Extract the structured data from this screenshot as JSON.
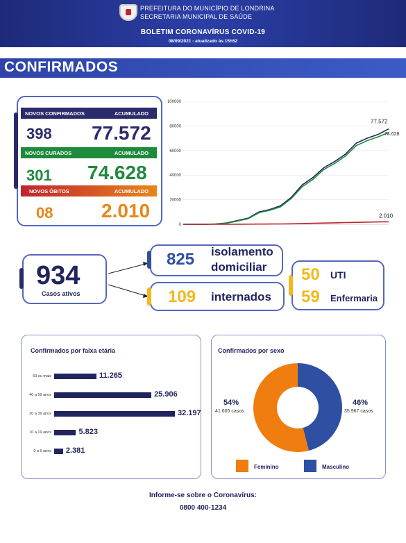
{
  "header": {
    "line1": "PREFEITURA DO MUNICÍPIO DE LONDRINA",
    "line2": "SECRETARIA MUNICIPAL DE SAÚDE",
    "title": "BOLETIM CORONAVÍRUS COVID-19",
    "date": "08/09/2021 - atualizado às 15h52"
  },
  "section_title": "CONFIRMADOS",
  "stats": {
    "confirmed": {
      "label": "NOVOS CONFIRMADOS",
      "acc_label": "ACUMULADO",
      "new": "398",
      "total": "77.572",
      "color": "#2b2a6b"
    },
    "cured": {
      "label": "NOVOS CURADOS",
      "acc_label": "ACUMULADO",
      "new": "301",
      "total": "74.628",
      "color": "#1e8a3c"
    },
    "deaths": {
      "label": "NOVOS ÓBITOS",
      "acc_label": "ACUMULADO",
      "new": "08",
      "total": "2.010",
      "color": "#e8861a"
    }
  },
  "chart_data": {
    "type": "line",
    "ylim": [
      0,
      100000
    ],
    "yticks": [
      "100000",
      "80000",
      "60000",
      "40000",
      "20000",
      "0"
    ],
    "series": [
      {
        "values": [
          0,
          0,
          0,
          200,
          1000,
          3000,
          5000,
          10000,
          12000,
          15000,
          22000,
          32000,
          38000,
          46000,
          51000,
          57000,
          66000,
          70000,
          73000,
          77572
        ]
      },
      {
        "values": [
          0,
          0,
          0,
          150,
          800,
          2600,
          4500,
          9400,
          11400,
          14200,
          21000,
          30500,
          36500,
          44500,
          49500,
          55500,
          64000,
          68000,
          71000,
          74628
        ]
      },
      {
        "values": [
          0,
          0,
          0,
          5,
          20,
          50,
          90,
          180,
          230,
          300,
          420,
          620,
          800,
          1000,
          1200,
          1400,
          1600,
          1750,
          1900,
          2010
        ]
      }
    ],
    "end_labels": [
      "77.572",
      "74.628",
      "2.010"
    ],
    "colors": [
      "#22245e",
      "#1e8a3c",
      "#c0242f"
    ]
  },
  "active": {
    "value": "934",
    "label": "Casos ativos",
    "isolation_value": "825",
    "isolation_label1": "isolamento",
    "isolation_label2": "domiciliar",
    "hospital_value": "109",
    "hospital_label": "internados",
    "uti_value": "50",
    "uti_label": "UTI",
    "ward_value": "59",
    "ward_label": "Enfermaria"
  },
  "age": {
    "title": "Confirmados por faixa etária",
    "rows": [
      {
        "label": "60 ou mais",
        "value": "11.265",
        "frac": 0.35
      },
      {
        "label": "40 a 59 anos",
        "value": "25.906",
        "frac": 0.805
      },
      {
        "label": "20 a 39 anos",
        "value": "32.197",
        "frac": 1.0
      },
      {
        "label": "10 a 19 anos",
        "value": "5.823",
        "frac": 0.181
      },
      {
        "label": "0 a 9 anos",
        "value": "2.381",
        "frac": 0.074
      }
    ]
  },
  "sex": {
    "title": "Confirmados por sexo",
    "female_pct": "54%",
    "female_cases": "41.605 casos",
    "male_pct": "46%",
    "male_cases": "35.967 casos",
    "female_label": "Feminino",
    "male_label": "Masculino",
    "female_frac": 0.54,
    "female_color": "#ef7d10",
    "male_color": "#2f4fa3"
  },
  "footer": {
    "line1": "Informe-se sobre o Coronavírus:",
    "line2": "0800 400-1234"
  }
}
